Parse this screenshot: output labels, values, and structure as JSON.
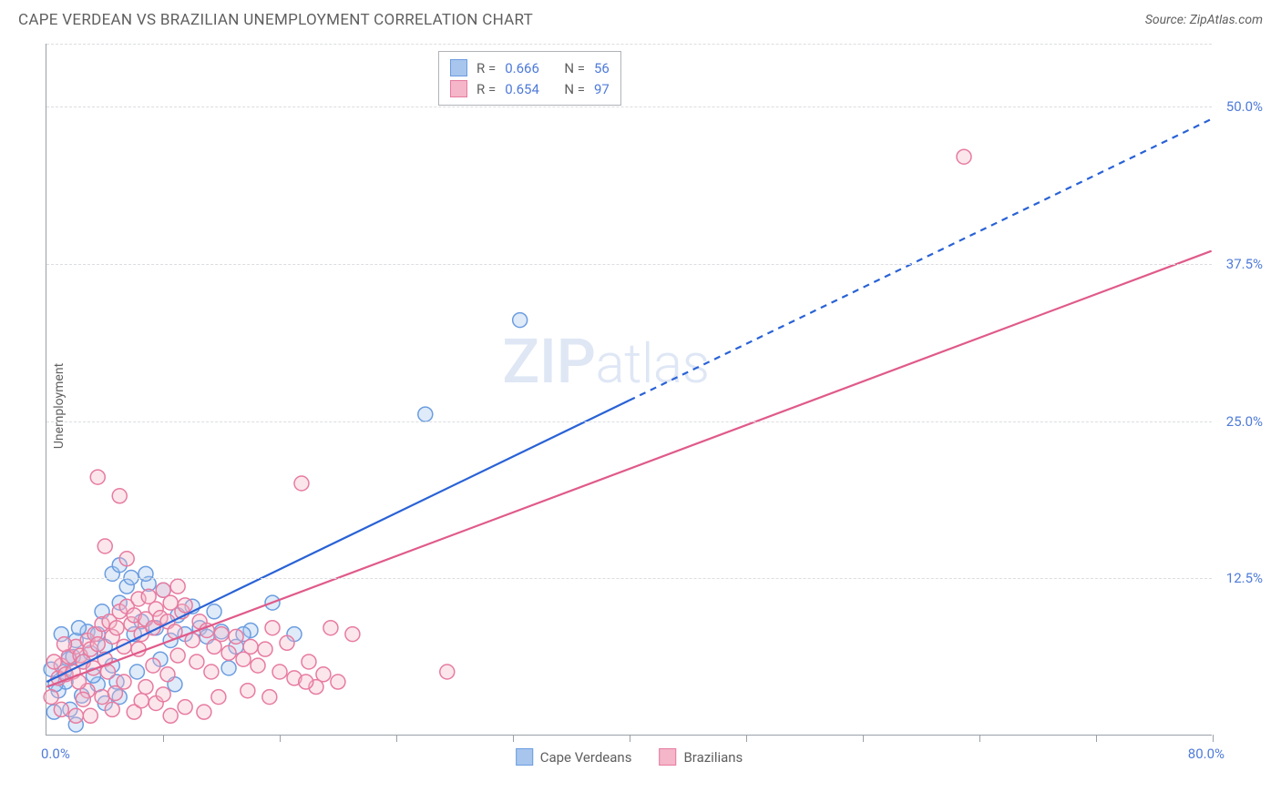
{
  "title": "CAPE VERDEAN VS BRAZILIAN UNEMPLOYMENT CORRELATION CHART",
  "source_label": "Source: ZipAtlas.com",
  "y_axis_label": "Unemployment",
  "watermark_zip": "ZIP",
  "watermark_atlas": "atlas",
  "chart": {
    "type": "scatter",
    "x_domain": [
      0,
      80
    ],
    "y_domain": [
      0,
      55
    ],
    "x_label_min": "0.0%",
    "x_label_max": "80.0%",
    "y_ticks": [
      12.5,
      25.0,
      37.5,
      50.0
    ],
    "y_tick_labels": [
      "12.5%",
      "25.0%",
      "37.5%",
      "50.0%"
    ],
    "x_tick_positions": [
      8,
      16,
      24,
      32,
      40,
      48,
      56,
      64,
      72,
      80
    ],
    "background_color": "#ffffff",
    "grid_color": "#dcdde0",
    "axis_color": "#9aa0a6",
    "label_color": "#5f5f5f",
    "value_color": "#4f7bd9",
    "point_radius": 8,
    "series": [
      {
        "name": "Cape Verdeans",
        "color_fill": "#a7c5ed",
        "color_stroke": "#6b9de0",
        "r_value": "0.666",
        "n_value": "56",
        "trend": {
          "x1": 0,
          "y1": 4.2,
          "x2": 80,
          "y2": 49,
          "solid_until_x": 40,
          "stroke": "#2962d6",
          "width": 2.2
        },
        "points": [
          [
            0.5,
            1.8
          ],
          [
            0.8,
            3.5
          ],
          [
            1.2,
            5.0
          ],
          [
            1.5,
            6.0
          ],
          [
            1.3,
            4.2
          ],
          [
            2.0,
            7.5
          ],
          [
            2.5,
            5.8
          ],
          [
            2.8,
            8.2
          ],
          [
            3.0,
            6.5
          ],
          [
            3.5,
            8.0
          ],
          [
            3.8,
            9.8
          ],
          [
            4.0,
            7.0
          ],
          [
            4.5,
            12.8
          ],
          [
            5.0,
            10.5
          ],
          [
            5.5,
            11.8
          ],
          [
            5.8,
            12.5
          ],
          [
            6.0,
            8.0
          ],
          [
            6.5,
            9.0
          ],
          [
            7.0,
            12.0
          ],
          [
            7.5,
            8.5
          ],
          [
            8.0,
            11.5
          ],
          [
            8.5,
            7.5
          ],
          [
            9.0,
            9.5
          ],
          [
            9.5,
            8.0
          ],
          [
            10.0,
            10.2
          ],
          [
            10.5,
            8.5
          ],
          [
            11.0,
            7.8
          ],
          [
            11.5,
            9.8
          ],
          [
            12.0,
            8.2
          ],
          [
            13.0,
            7.0
          ],
          [
            14.0,
            8.3
          ],
          [
            15.5,
            10.5
          ],
          [
            17.0,
            8.0
          ],
          [
            2.0,
            0.8
          ],
          [
            3.5,
            4.0
          ],
          [
            4.5,
            5.5
          ],
          [
            6.8,
            12.8
          ],
          [
            5.0,
            13.5
          ],
          [
            32.5,
            33.0
          ],
          [
            26.0,
            25.5
          ],
          [
            1.0,
            8.0
          ],
          [
            0.3,
            5.2
          ],
          [
            1.6,
            2.0
          ],
          [
            2.4,
            3.1
          ],
          [
            3.2,
            4.7
          ],
          [
            6.2,
            5.0
          ],
          [
            7.8,
            6.0
          ],
          [
            4.0,
            2.5
          ],
          [
            5.0,
            3.0
          ],
          [
            1.8,
            6.2
          ],
          [
            4.8,
            4.2
          ],
          [
            12.5,
            5.3
          ],
          [
            8.8,
            4.0
          ],
          [
            13.5,
            8.0
          ],
          [
            0.6,
            4.0
          ],
          [
            2.2,
            8.5
          ]
        ]
      },
      {
        "name": "Brazilians",
        "color_fill": "#f4b6c8",
        "color_stroke": "#e77ba0",
        "r_value": "0.654",
        "n_value": "97",
        "trend": {
          "x1": 0,
          "y1": 3.8,
          "x2": 80,
          "y2": 38.5,
          "solid_until_x": 80,
          "stroke": "#e05a8a",
          "width": 2.2
        },
        "points": [
          [
            0.3,
            3.0
          ],
          [
            0.8,
            4.5
          ],
          [
            1.0,
            5.5
          ],
          [
            1.3,
            4.8
          ],
          [
            1.5,
            6.2
          ],
          [
            1.8,
            5.0
          ],
          [
            2.0,
            7.0
          ],
          [
            2.3,
            6.3
          ],
          [
            2.5,
            5.8
          ],
          [
            2.8,
            7.5
          ],
          [
            3.0,
            6.8
          ],
          [
            3.3,
            8.0
          ],
          [
            3.5,
            7.2
          ],
          [
            3.8,
            8.8
          ],
          [
            4.0,
            6.0
          ],
          [
            4.3,
            9.0
          ],
          [
            4.5,
            7.8
          ],
          [
            4.8,
            8.5
          ],
          [
            5.0,
            9.8
          ],
          [
            5.3,
            7.0
          ],
          [
            5.5,
            10.2
          ],
          [
            5.8,
            8.8
          ],
          [
            6.0,
            9.5
          ],
          [
            6.3,
            10.8
          ],
          [
            6.5,
            8.0
          ],
          [
            6.8,
            9.2
          ],
          [
            7.0,
            11.0
          ],
          [
            7.3,
            8.5
          ],
          [
            7.5,
            10.0
          ],
          [
            7.8,
            9.3
          ],
          [
            8.0,
            11.5
          ],
          [
            8.3,
            9.0
          ],
          [
            8.5,
            10.5
          ],
          [
            8.8,
            8.2
          ],
          [
            9.0,
            11.8
          ],
          [
            9.3,
            9.8
          ],
          [
            9.5,
            10.3
          ],
          [
            10.0,
            7.5
          ],
          [
            10.5,
            9.0
          ],
          [
            11.0,
            8.3
          ],
          [
            11.5,
            7.0
          ],
          [
            12.0,
            8.0
          ],
          [
            12.5,
            6.5
          ],
          [
            13.0,
            7.8
          ],
          [
            13.5,
            6.0
          ],
          [
            14.0,
            7.0
          ],
          [
            14.5,
            5.5
          ],
          [
            15.0,
            6.8
          ],
          [
            15.5,
            8.5
          ],
          [
            16.0,
            5.0
          ],
          [
            17.0,
            4.5
          ],
          [
            18.0,
            5.8
          ],
          [
            19.0,
            4.8
          ],
          [
            20.0,
            4.2
          ],
          [
            21.0,
            8.0
          ],
          [
            17.5,
            20.0
          ],
          [
            4.0,
            15.0
          ],
          [
            5.0,
            19.0
          ],
          [
            3.5,
            20.5
          ],
          [
            5.5,
            14.0
          ],
          [
            3.0,
            1.5
          ],
          [
            4.5,
            2.0
          ],
          [
            6.0,
            1.8
          ],
          [
            7.5,
            2.5
          ],
          [
            8.5,
            1.5
          ],
          [
            9.5,
            2.2
          ],
          [
            10.8,
            1.8
          ],
          [
            1.0,
            2.0
          ],
          [
            2.0,
            1.5
          ],
          [
            2.8,
            3.5
          ],
          [
            3.8,
            3.0
          ],
          [
            5.3,
            4.2
          ],
          [
            6.8,
            3.8
          ],
          [
            8.0,
            3.2
          ],
          [
            11.8,
            3.0
          ],
          [
            13.8,
            3.5
          ],
          [
            15.3,
            3.0
          ],
          [
            18.5,
            3.8
          ],
          [
            19.5,
            8.5
          ],
          [
            27.5,
            5.0
          ],
          [
            63.0,
            46.0
          ],
          [
            0.5,
            5.8
          ],
          [
            1.2,
            7.2
          ],
          [
            2.2,
            4.2
          ],
          [
            3.2,
            5.3
          ],
          [
            4.2,
            5.0
          ],
          [
            6.3,
            6.8
          ],
          [
            7.3,
            5.5
          ],
          [
            9.0,
            6.3
          ],
          [
            10.3,
            5.8
          ],
          [
            11.3,
            5.0
          ],
          [
            16.5,
            7.3
          ],
          [
            17.8,
            4.2
          ],
          [
            2.5,
            2.8
          ],
          [
            4.7,
            3.3
          ],
          [
            6.5,
            2.7
          ],
          [
            8.3,
            4.8
          ]
        ]
      }
    ]
  },
  "legend_r_prefix": "R = ",
  "legend_n_prefix": "N = "
}
